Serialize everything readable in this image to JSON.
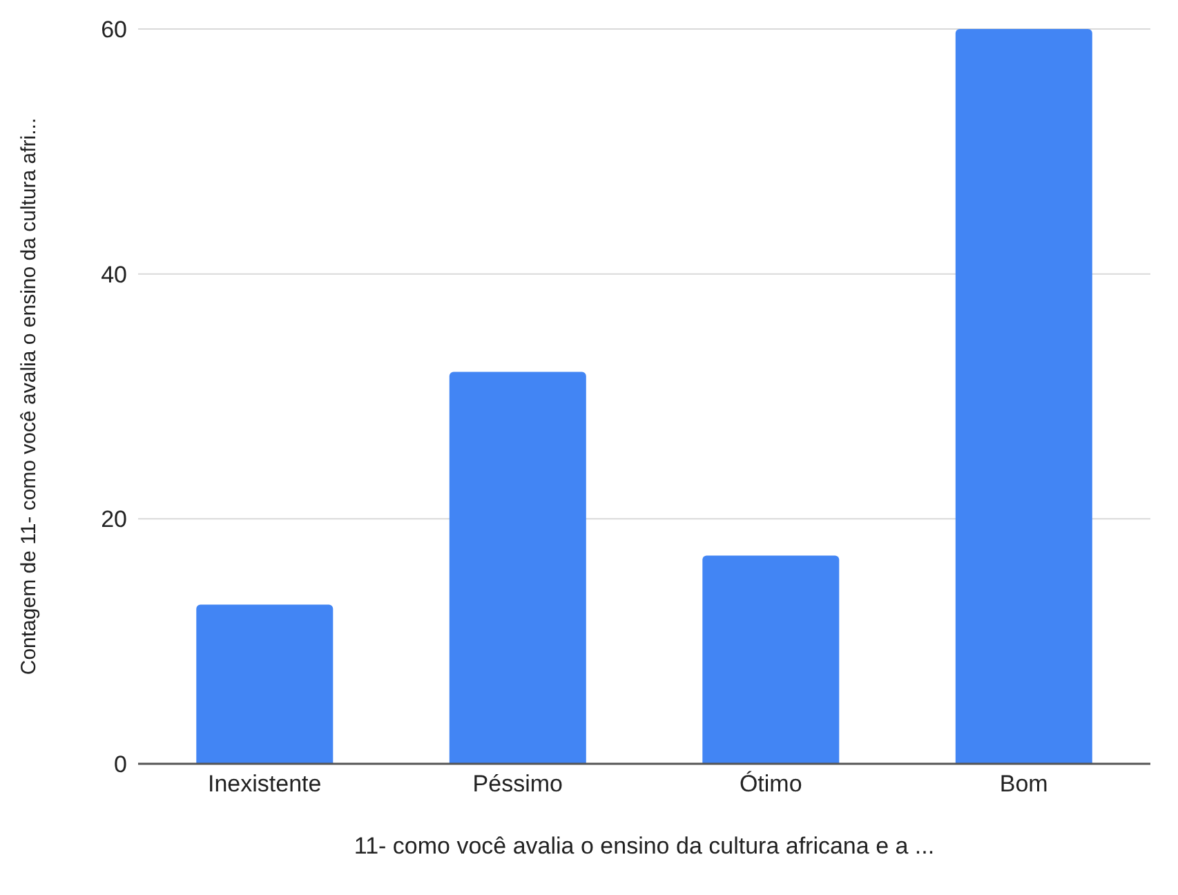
{
  "chart_data": {
    "type": "bar",
    "xlabel": "11- como você avalia o ensino da cultura africana e a ...",
    "ylabel": "Contagem de 11- como você avalia o ensino da cultura afri...",
    "categories": [
      "Inexistente",
      "Péssimo",
      "Ótimo",
      "Bom"
    ],
    "values": [
      13,
      32,
      17,
      60
    ],
    "color": "#4285f4",
    "ylim": [
      0,
      60
    ],
    "yticks": [
      0,
      20,
      40,
      60
    ],
    "grid": "y"
  }
}
